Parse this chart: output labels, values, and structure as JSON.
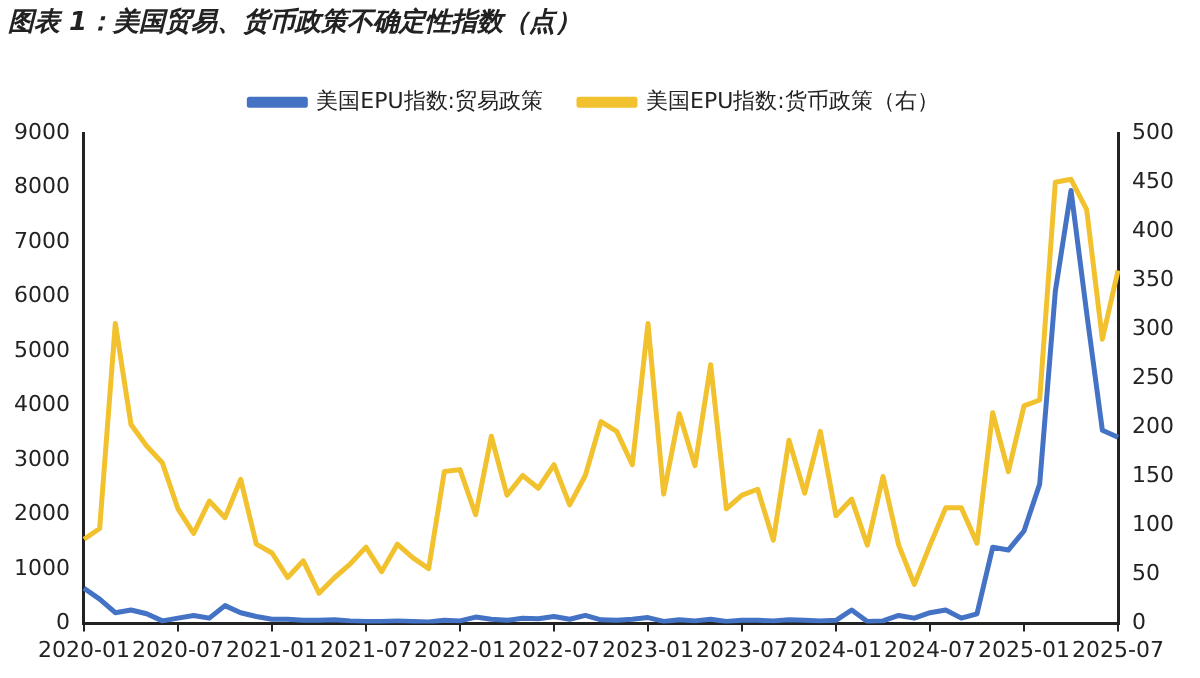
{
  "chart_data": {
    "type": "line",
    "title": "图表 1：美国贸易、货币政策不确定性指数（点）",
    "categories": [
      "2020-01",
      null,
      null,
      null,
      null,
      null,
      "2020-07",
      null,
      null,
      null,
      null,
      null,
      "2021-01",
      null,
      null,
      null,
      null,
      null,
      "2021-07",
      null,
      null,
      null,
      null,
      null,
      "2022-01",
      null,
      null,
      null,
      null,
      null,
      "2022-07",
      null,
      null,
      null,
      null,
      null,
      "2023-01",
      null,
      null,
      null,
      null,
      null,
      "2023-07",
      null,
      null,
      null,
      null,
      null,
      "2024-01",
      null,
      null,
      null,
      null,
      null,
      "2024-07",
      null,
      null,
      null,
      null,
      null,
      "2025-01",
      null,
      null,
      null,
      null,
      null,
      "2025-07"
    ],
    "series": [
      {
        "name": "美国EPU指数:贸易政策",
        "color": "#4472c4",
        "values": [
          650,
          450,
          200,
          250,
          180,
          50,
          100,
          150,
          100,
          330,
          200,
          130,
          80,
          80,
          60,
          60,
          70,
          50,
          40,
          40,
          50,
          40,
          30,
          60,
          50,
          120,
          80,
          60,
          100,
          90,
          130,
          80,
          150,
          70,
          60,
          80,
          110,
          40,
          70,
          50,
          80,
          40,
          60,
          60,
          50,
          70,
          60,
          50,
          60,
          250,
          40,
          50,
          150,
          100,
          200,
          250,
          100,
          180,
          1400,
          1350,
          1700,
          2560,
          6100,
          7950,
          5700,
          3550,
          3420
        ]
      },
      {
        "name": "美国EPU指数:货币政策（右）",
        "color": "#f2c12e",
        "axis": "y2",
        "values": [
          86,
          97,
          306,
          203,
          181,
          164,
          117,
          92,
          125,
          108,
          147,
          81,
          72,
          47,
          64,
          31,
          47,
          61,
          78,
          53,
          81,
          67,
          56,
          155,
          157,
          111,
          191,
          131,
          151,
          138,
          162,
          121,
          151,
          206,
          196,
          162,
          306,
          132,
          214,
          161,
          264,
          117,
          131,
          137,
          85,
          187,
          133,
          196,
          110,
          127,
          80,
          150,
          80,
          40,
          80,
          118,
          118,
          82,
          215,
          155,
          222,
          228,
          450,
          453,
          422,
          290,
          360
        ]
      }
    ],
    "ylim": [
      0,
      9000
    ],
    "yticks": [
      0,
      1000,
      2000,
      3000,
      4000,
      5000,
      6000,
      7000,
      8000,
      9000
    ],
    "y2lim": [
      0,
      500
    ],
    "y2ticks": [
      0,
      50,
      100,
      150,
      200,
      250,
      300,
      350,
      400,
      450,
      500
    ],
    "grid": false,
    "legend": "top",
    "marker": "none",
    "line_style": "solid"
  }
}
